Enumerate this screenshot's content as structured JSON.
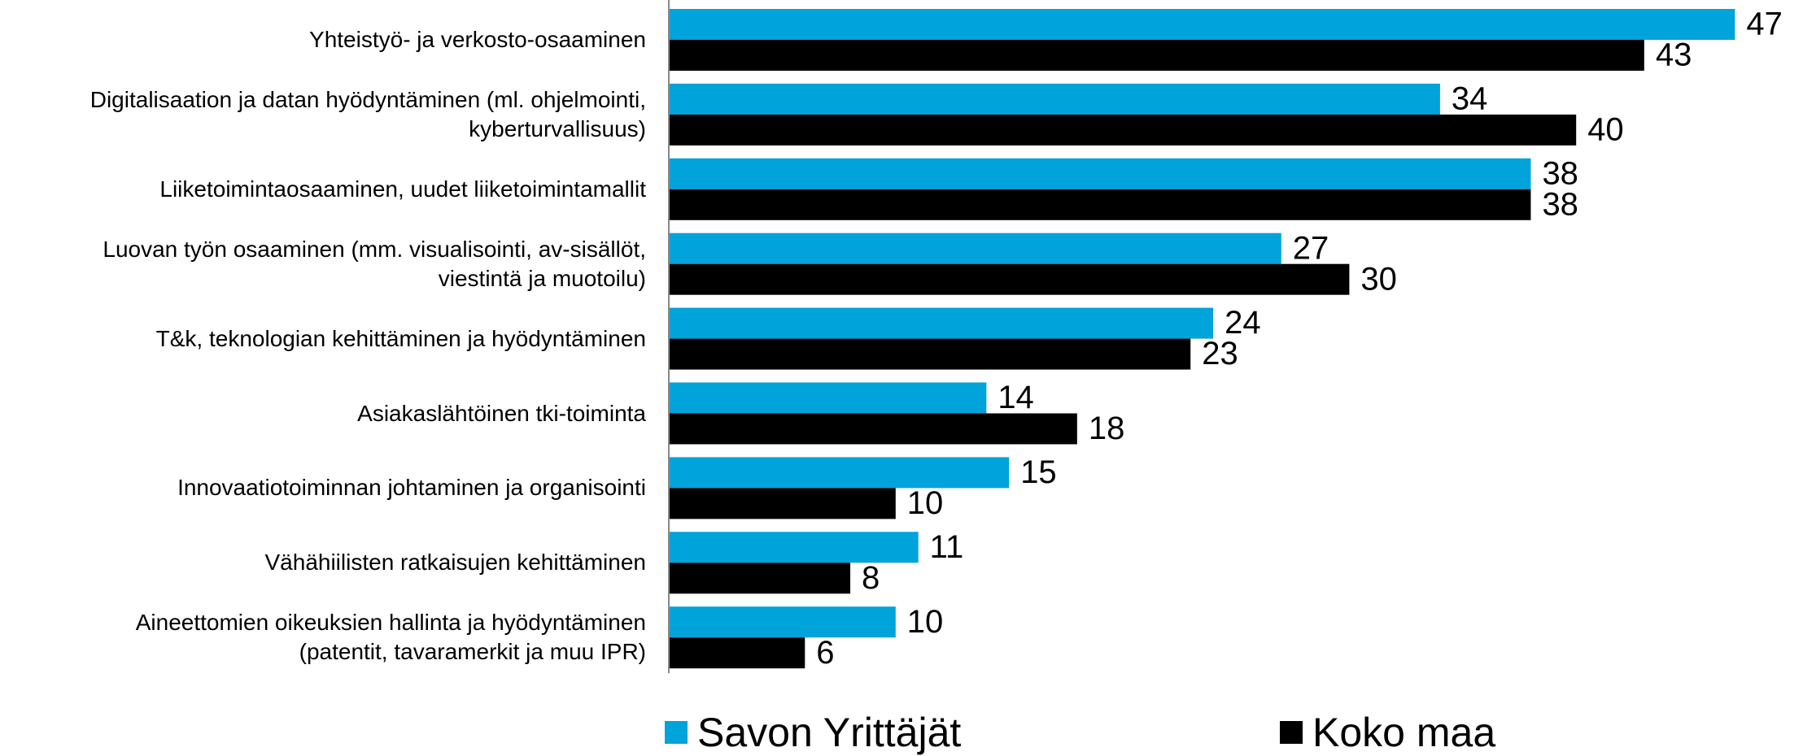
{
  "chart_data": {
    "type": "bar",
    "orientation": "horizontal",
    "categories": [
      "Yhteistyö- ja verkosto-osaaminen",
      "Digitalisaation ja datan hyödyntäminen (ml. ohjelmointi,\nkyberturvallisuus)",
      "Liiketoimintaosaaminen, uudet liiketoimintamallit",
      "Luovan työn osaaminen (mm. visualisointi, av-sisällöt,\nviestintä ja muotoilu)",
      "T&k, teknologian kehittäminen ja hyödyntäminen",
      "Asiakaslähtöinen tki-toiminta",
      "Innovaatiotoiminnan johtaminen ja organisointi",
      "Vähähiilisten ratkaisujen kehittäminen",
      "Aineettomien oikeuksien hallinta ja hyödyntäminen\n(patentit, tavaramerkit ja muu IPR)"
    ],
    "series": [
      {
        "name": "Savon Yrittäjät",
        "color": "#00a3da",
        "values": [
          47,
          34,
          38,
          27,
          24,
          14,
          15,
          11,
          10
        ]
      },
      {
        "name": "Koko maa",
        "color": "#000000",
        "values": [
          43,
          40,
          38,
          30,
          23,
          18,
          10,
          8,
          6
        ]
      }
    ],
    "xlim": [
      0,
      50
    ]
  }
}
